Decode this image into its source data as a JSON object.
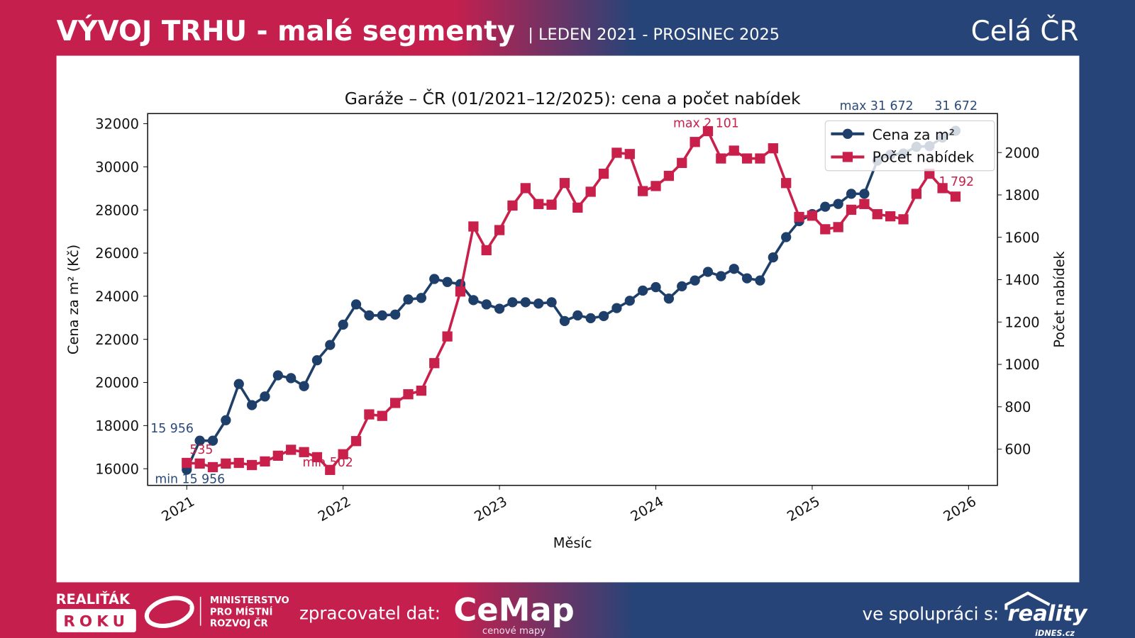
{
  "header": {
    "title": "VÝVOJ TRHU - malé segmenty",
    "period": "| LEDEN 2021 - PROSINEC 2025",
    "region": "Celá ČR"
  },
  "footer": {
    "logo_realitak_line1": "REALIŤÁK",
    "logo_realitak_line2": "ROKU",
    "mmr_line1": "MINISTERSTVO",
    "mmr_line2": "PRO MÍSTNÍ",
    "mmr_line3": "ROZVOJ ČR",
    "processor_label": "zpracovatel dat:",
    "cemap_logo": "CeMap",
    "cemap_sub": "cenové mapy",
    "partner_label": "ve spolupráci s:",
    "reality_logo": "reality",
    "reality_sub": "iDNES.cz"
  },
  "colors": {
    "header_red": "#c51f4e",
    "header_blue": "#264478",
    "price_line": "#1f3f6b",
    "count_line": "#c8204a"
  },
  "chart_data": {
    "type": "line",
    "title": "Garáže – ČR (01/2021–12/2025): cena a počet nabídek",
    "xlabel": "Měsíc",
    "ylabel_left": "Cena za m² (Kč)",
    "ylabel_right": "Počet nabídek",
    "x_ticks": [
      "2021",
      "2022",
      "2023",
      "2024",
      "2025",
      "2026"
    ],
    "y_left_ticks": [
      16000,
      18000,
      20000,
      22000,
      24000,
      26000,
      28000,
      30000,
      32000
    ],
    "y_right_ticks": [
      600,
      800,
      1000,
      1200,
      1400,
      1600,
      1800,
      2000
    ],
    "x_start": "2021-01",
    "x_end": "2025-12",
    "legend_position": "top-right",
    "grid": false,
    "series": [
      {
        "name": "Cena za m²",
        "axis": "left",
        "marker": "circle",
        "values": [
          15956,
          17300,
          17300,
          18250,
          19930,
          18950,
          19350,
          20330,
          20200,
          19830,
          21030,
          21740,
          22680,
          23620,
          23110,
          23110,
          23150,
          23850,
          23920,
          24800,
          24660,
          24560,
          23820,
          23620,
          23420,
          23720,
          23720,
          23660,
          23720,
          22850,
          23110,
          22980,
          23080,
          23450,
          23790,
          24260,
          24420,
          23890,
          24460,
          24730,
          25130,
          24930,
          25270,
          24830,
          24730,
          25800,
          26740,
          27480,
          27810,
          28150,
          28280,
          28750,
          28750,
          30290,
          30560,
          30620,
          30930,
          30960,
          31360,
          31672
        ]
      },
      {
        "name": "Počet nabídek",
        "axis": "right",
        "marker": "square",
        "values": [
          535,
          532,
          515,
          532,
          535,
          525,
          542,
          569,
          597,
          586,
          562,
          502,
          576,
          638,
          764,
          757,
          818,
          859,
          876,
          1006,
          1132,
          1344,
          1651,
          1539,
          1634,
          1750,
          1832,
          1757,
          1754,
          1856,
          1740,
          1815,
          1900,
          1999,
          1993,
          1818,
          1842,
          1890,
          1951,
          2050,
          2101,
          1972,
          2009,
          1972,
          1972,
          2020,
          1856,
          1696,
          1702,
          1638,
          1648,
          1730,
          1757,
          1709,
          1699,
          1685,
          1805,
          1900,
          1832,
          1792
        ]
      }
    ],
    "annotations": {
      "price_min": "min 15 956",
      "price_first": "15 956",
      "price_max": "max 31 672",
      "price_last": "31 672",
      "count_first": "535",
      "count_min": "min 502",
      "count_max": "max 2 101",
      "count_last": "1 792"
    }
  }
}
